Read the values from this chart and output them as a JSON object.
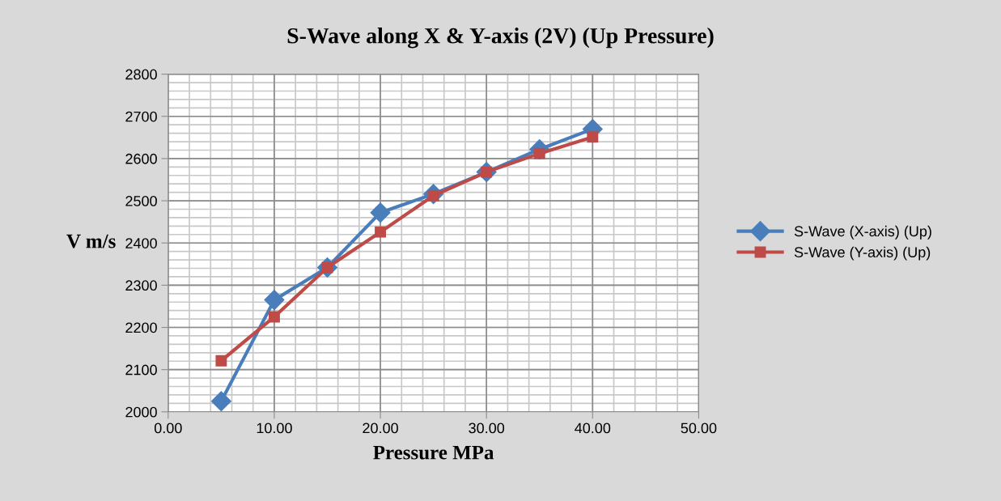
{
  "chart_data": {
    "type": "line",
    "title": "S-Wave along X & Y-axis (2V) (Up Pressure)",
    "xlabel": "Pressure MPa",
    "ylabel": "V m/s",
    "x": [
      5,
      10,
      15,
      20,
      25,
      30,
      35,
      40
    ],
    "series": [
      {
        "name": "S-Wave (X-axis) (Up)",
        "color": "#4a7ebb",
        "marker": "diamond",
        "values": [
          2025,
          2265,
          2342,
          2472,
          2516,
          2568,
          2622,
          2670
        ]
      },
      {
        "name": "S-Wave (Y-axis) (Up)",
        "color": "#be4b48",
        "marker": "square",
        "values": [
          2121,
          2225,
          2342,
          2426,
          2512,
          2568,
          2612,
          2651
        ]
      }
    ],
    "xlim": [
      0,
      50
    ],
    "xticks": [
      {
        "value": 0,
        "label": "0.00"
      },
      {
        "value": 10,
        "label": "10.00"
      },
      {
        "value": 20,
        "label": "20.00"
      },
      {
        "value": 30,
        "label": "30.00"
      },
      {
        "value": 40,
        "label": "40.00"
      },
      {
        "value": 50,
        "label": "50.00"
      }
    ],
    "ylim": [
      2000,
      2800
    ],
    "yticks": [
      2000,
      2100,
      2200,
      2300,
      2400,
      2500,
      2600,
      2700,
      2800
    ],
    "grid": true,
    "legend": "right",
    "line_style": "solid"
  }
}
